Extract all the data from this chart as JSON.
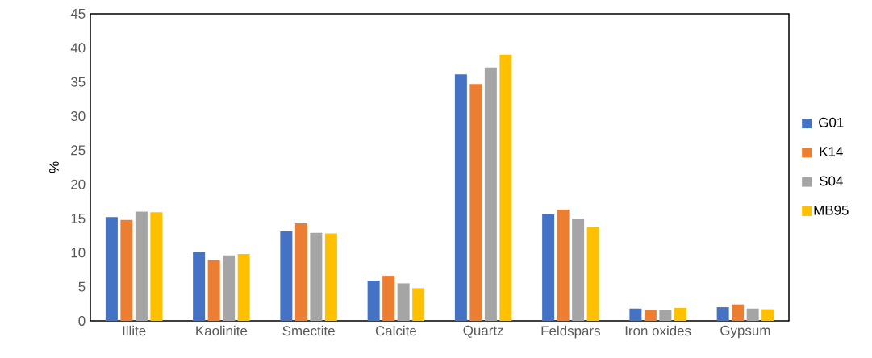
{
  "chart_data": {
    "type": "bar",
    "ylabel": "%",
    "categories": [
      "Illite",
      "Kaolinite",
      "Smectite",
      "Calcite",
      "Quartz",
      "Feldspars",
      "Iron oxides",
      "Gypsum"
    ],
    "series": [
      {
        "name": "G01",
        "color": "#4472c4",
        "values": [
          15.2,
          10.1,
          13.1,
          5.9,
          36.1,
          15.6,
          1.8,
          2.0
        ]
      },
      {
        "name": "K14",
        "color": "#ed7d31",
        "values": [
          14.8,
          8.9,
          14.3,
          6.6,
          34.7,
          16.3,
          1.6,
          2.4
        ]
      },
      {
        "name": "S04",
        "color": "#a5a5a5",
        "values": [
          16.0,
          9.6,
          12.9,
          5.5,
          37.1,
          15.0,
          1.6,
          1.8
        ]
      },
      {
        "name": "MB95",
        "color": "#ffc000",
        "values": [
          15.9,
          9.8,
          12.8,
          4.8,
          39.0,
          13.8,
          1.9,
          1.7
        ]
      }
    ],
    "ylim": [
      0,
      45
    ],
    "yticks": [
      0,
      5,
      10,
      15,
      20,
      25,
      30,
      35,
      40,
      45
    ],
    "grid": false,
    "legend": "right"
  }
}
